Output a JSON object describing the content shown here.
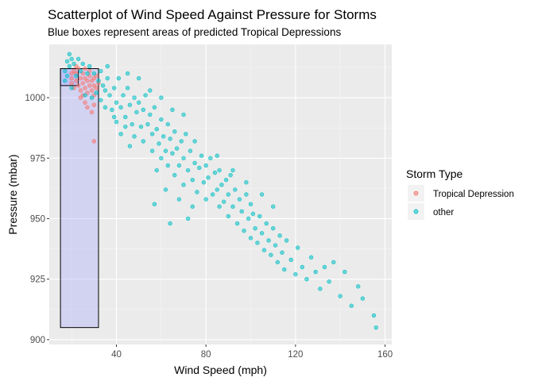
{
  "chart_data": {
    "type": "scatter",
    "title": "Scatterplot of Wind Speed Against Pressure for Storms",
    "subtitle": "Blue boxes represent areas of predicted Tropical Depressions",
    "xlabel": "Wind Speed (mph)",
    "ylabel": "Pressure (mbar)",
    "xlim": [
      10,
      163
    ],
    "ylim": [
      898,
      1022
    ],
    "x_ticks": [
      40,
      80,
      120,
      160
    ],
    "y_ticks": [
      900,
      925,
      950,
      975,
      1000
    ],
    "grid": true,
    "legend": {
      "title": "Storm Type",
      "position": "right",
      "entries": [
        {
          "label": "Tropical Depression",
          "color": "#F8766D"
        },
        {
          "label": "other",
          "color": "#00BFC4"
        }
      ]
    },
    "boxes": [
      {
        "x": [
          15,
          32
        ],
        "y": [
          905,
          1012
        ],
        "fill": "#9999ff",
        "stroke": "#000000"
      },
      {
        "x": [
          15,
          23
        ],
        "y": [
          1005,
          1012
        ],
        "fill": "#9999ff",
        "stroke": "#000000"
      }
    ],
    "series": [
      {
        "name": "Tropical Depression",
        "color": "#F8766D",
        "points": [
          [
            20,
            1008
          ],
          [
            20,
            1010
          ],
          [
            20,
            1006
          ],
          [
            21,
            1004
          ],
          [
            22,
            1007
          ],
          [
            22,
            1010
          ],
          [
            23,
            1012
          ],
          [
            23,
            1005
          ],
          [
            24,
            1008
          ],
          [
            24,
            1003
          ],
          [
            25,
            1010
          ],
          [
            25,
            1006
          ],
          [
            25,
            1001
          ],
          [
            26,
            1008
          ],
          [
            26,
            1012
          ],
          [
            26,
            1004
          ],
          [
            27,
            1007
          ],
          [
            27,
            1002
          ],
          [
            28,
            1009
          ],
          [
            28,
            1005
          ],
          [
            28,
            1011
          ],
          [
            29,
            1003
          ],
          [
            29,
            1007
          ],
          [
            30,
            1008
          ],
          [
            30,
            1001
          ],
          [
            30,
            1005
          ],
          [
            31,
            1004
          ],
          [
            31,
            1009
          ],
          [
            32,
            1006
          ],
          [
            22,
            1013
          ],
          [
            21,
            1011
          ],
          [
            27,
            996
          ],
          [
            29,
            994
          ],
          [
            30,
            982
          ],
          [
            30,
            997
          ],
          [
            24,
            1000
          ],
          [
            26,
            998
          ]
        ]
      },
      {
        "name": "other",
        "color": "#00BFC4",
        "points": [
          [
            17,
            1007
          ],
          [
            17,
            1011
          ],
          [
            18,
            1015
          ],
          [
            18,
            1009
          ],
          [
            19,
            1013
          ],
          [
            19,
            1018
          ],
          [
            20,
            1016
          ],
          [
            20,
            1004
          ],
          [
            21,
            1014
          ],
          [
            22,
            1009
          ],
          [
            23,
            1016
          ],
          [
            24,
            1011
          ],
          [
            25,
            1014
          ],
          [
            26,
            1001
          ],
          [
            27,
            1010
          ],
          [
            28,
            1013
          ],
          [
            29,
            1000
          ],
          [
            30,
            1010
          ],
          [
            31,
            1002
          ],
          [
            32,
            1007
          ],
          [
            33,
            999
          ],
          [
            33,
            1011
          ],
          [
            34,
            1005
          ],
          [
            35,
            1003
          ],
          [
            35,
            996
          ],
          [
            36,
            1008
          ],
          [
            37,
            1001
          ],
          [
            38,
            995
          ],
          [
            39,
            1004
          ],
          [
            40,
            998
          ],
          [
            40,
            990
          ],
          [
            41,
            1008
          ],
          [
            42,
            996
          ],
          [
            43,
            1001
          ],
          [
            44,
            992
          ],
          [
            44,
            988
          ],
          [
            45,
            1004
          ],
          [
            46,
            997
          ],
          [
            47,
            989
          ],
          [
            48,
            1000
          ],
          [
            48,
            984
          ],
          [
            49,
            994
          ],
          [
            50,
            998
          ],
          [
            51,
            988
          ],
          [
            52,
            995
          ],
          [
            52,
            982
          ],
          [
            53,
            1001
          ],
          [
            54,
            989
          ],
          [
            55,
            993
          ],
          [
            56,
            985
          ],
          [
            56,
            978
          ],
          [
            57,
            996
          ],
          [
            58,
            987
          ],
          [
            59,
            981
          ],
          [
            60,
            991
          ],
          [
            60,
            975
          ],
          [
            61,
            984
          ],
          [
            62,
            978
          ],
          [
            63,
            989
          ],
          [
            63,
            972
          ],
          [
            64,
            983
          ],
          [
            65,
            977
          ],
          [
            66,
            986
          ],
          [
            66,
            968
          ],
          [
            67,
            979
          ],
          [
            68,
            972
          ],
          [
            69,
            982
          ],
          [
            70,
            975
          ],
          [
            70,
            964
          ],
          [
            71,
            985
          ],
          [
            72,
            970
          ],
          [
            73,
            978
          ],
          [
            74,
            966
          ],
          [
            75,
            973
          ],
          [
            75,
            982
          ],
          [
            76,
            961
          ],
          [
            77,
            971
          ],
          [
            78,
            976
          ],
          [
            79,
            965
          ],
          [
            80,
            958
          ],
          [
            80,
            972
          ],
          [
            81,
            967
          ],
          [
            82,
            975
          ],
          [
            83,
            960
          ],
          [
            84,
            969
          ],
          [
            85,
            962
          ],
          [
            86,
            955
          ],
          [
            86,
            970
          ],
          [
            87,
            964
          ],
          [
            88,
            957
          ],
          [
            89,
            966
          ],
          [
            90,
            951
          ],
          [
            90,
            960
          ],
          [
            91,
            968
          ],
          [
            92,
            955
          ],
          [
            93,
            962
          ],
          [
            94,
            948
          ],
          [
            95,
            958
          ],
          [
            96,
            953
          ],
          [
            97,
            945
          ],
          [
            98,
            960
          ],
          [
            99,
            950
          ],
          [
            100,
            942
          ],
          [
            100,
            956
          ],
          [
            101,
            952
          ],
          [
            102,
            946
          ],
          [
            103,
            940
          ],
          [
            104,
            951
          ],
          [
            105,
            944
          ],
          [
            106,
            937
          ],
          [
            107,
            948
          ],
          [
            108,
            941
          ],
          [
            109,
            935
          ],
          [
            110,
            946
          ],
          [
            111,
            939
          ],
          [
            112,
            932
          ],
          [
            113,
            943
          ],
          [
            114,
            936
          ],
          [
            115,
            929
          ],
          [
            116,
            941
          ],
          [
            118,
            933
          ],
          [
            120,
            927
          ],
          [
            121,
            938
          ],
          [
            123,
            930
          ],
          [
            125,
            925
          ],
          [
            127,
            934
          ],
          [
            129,
            928
          ],
          [
            131,
            921
          ],
          [
            133,
            930
          ],
          [
            135,
            924
          ],
          [
            137,
            932
          ],
          [
            140,
            918
          ],
          [
            142,
            928
          ],
          [
            145,
            914
          ],
          [
            148,
            922
          ],
          [
            150,
            917
          ],
          [
            155,
            910
          ],
          [
            156,
            905
          ],
          [
            45,
            1010
          ],
          [
            50,
            1008
          ],
          [
            55,
            1003
          ],
          [
            60,
            1000
          ],
          [
            65,
            995
          ],
          [
            70,
            993
          ],
          [
            36,
            1013
          ],
          [
            39,
            992
          ],
          [
            42,
            985
          ],
          [
            46,
            980
          ],
          [
            58,
            970
          ],
          [
            62,
            962
          ],
          [
            68,
            958
          ],
          [
            74,
            955
          ],
          [
            85,
            976
          ],
          [
            92,
            970
          ],
          [
            98,
            965
          ],
          [
            105,
            960
          ],
          [
            110,
            955
          ],
          [
            57,
            956
          ],
          [
            64,
            948
          ],
          [
            72,
            950
          ]
        ]
      }
    ]
  }
}
